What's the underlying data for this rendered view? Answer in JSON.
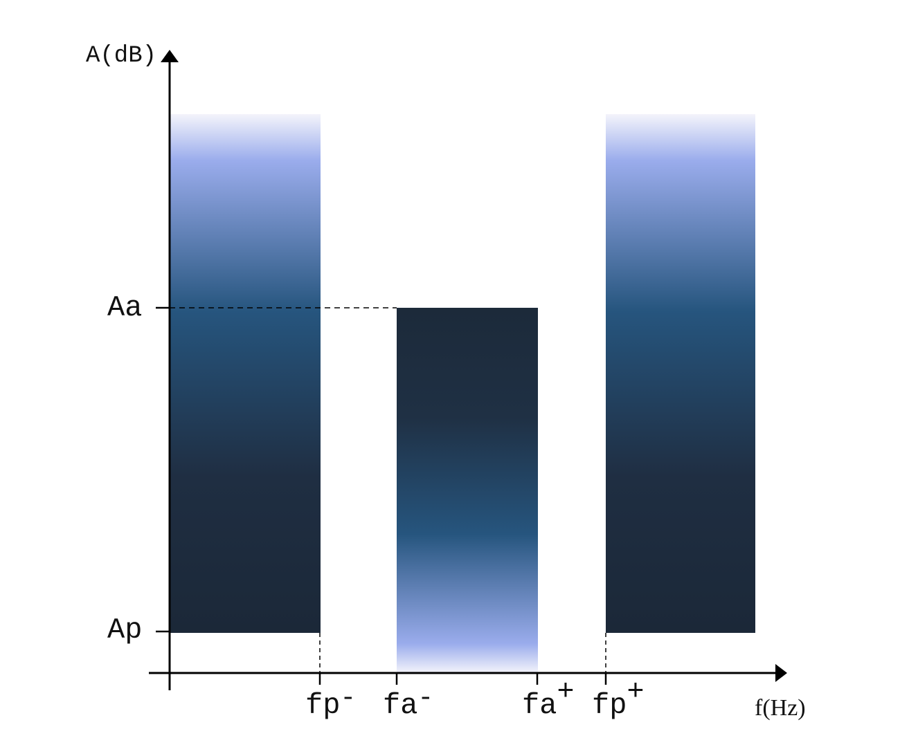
{
  "axes": {
    "y_title": "A(dB)",
    "x_title": "f(Hz)"
  },
  "y_ticks": {
    "aa": "Aa",
    "ap": "Ap"
  },
  "x_ticks": [
    {
      "base": "fp",
      "sup": "-"
    },
    {
      "base": "fa",
      "sup": "-"
    },
    {
      "base": "fa",
      "sup": "+"
    },
    {
      "base": "fp",
      "sup": "+"
    }
  ],
  "colors": {
    "axis": "#000000",
    "dark": "#1c2a3a",
    "mid": "#26557e",
    "light": "#9aacec",
    "fade": "#f4f4fb"
  }
}
